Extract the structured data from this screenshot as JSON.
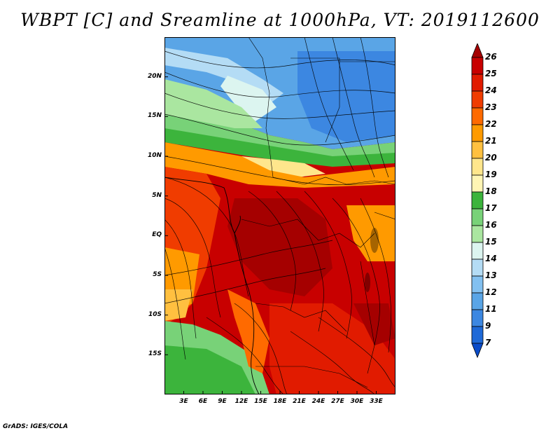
{
  "title": "WBPT [C] and Sreamline at 1000hPa, VT: 2019112600",
  "credit": "GrADS: IGES/COLA",
  "map": {
    "lon_range": [
      0,
      36
    ],
    "lat_range": [
      -20,
      25
    ],
    "lat_ticks": [
      {
        "lat": 20,
        "label": "20N"
      },
      {
        "lat": 15,
        "label": "15N"
      },
      {
        "lat": 10,
        "label": "10N"
      },
      {
        "lat": 5,
        "label": "5N"
      },
      {
        "lat": 0,
        "label": "EQ"
      },
      {
        "lat": -5,
        "label": "5S"
      },
      {
        "lat": -10,
        "label": "10S"
      },
      {
        "lat": -15,
        "label": "15S"
      }
    ],
    "lon_ticks": [
      {
        "lon": 3,
        "label": "3E"
      },
      {
        "lon": 6,
        "label": "6E"
      },
      {
        "lon": 9,
        "label": "9E"
      },
      {
        "lon": 12,
        "label": "12E"
      },
      {
        "lon": 15,
        "label": "15E"
      },
      {
        "lon": 18,
        "label": "18E"
      },
      {
        "lon": 21,
        "label": "21E"
      },
      {
        "lon": 24,
        "label": "24E"
      },
      {
        "lon": 27,
        "label": "27E"
      },
      {
        "lon": 30,
        "label": "30E"
      },
      {
        "lon": 33,
        "label": "33E"
      }
    ]
  },
  "colorbar": {
    "levels": [
      "26",
      "25",
      "24",
      "23",
      "22",
      "21",
      "20",
      "19",
      "18",
      "17",
      "16",
      "15",
      "14",
      "13",
      "12",
      "11",
      "9",
      "7"
    ],
    "colors": [
      "#a50000",
      "#c80000",
      "#e11b00",
      "#f03c00",
      "#ff6a00",
      "#ff9a00",
      "#ffc040",
      "#ffe68c",
      "#fff5b4",
      "#3cb43c",
      "#78d278",
      "#aae6a0",
      "#dcf5f0",
      "#b4dcf5",
      "#82c0f0",
      "#5aa5e6",
      "#3c87e1",
      "#1e69d7",
      "#0a4bc8"
    ]
  }
}
